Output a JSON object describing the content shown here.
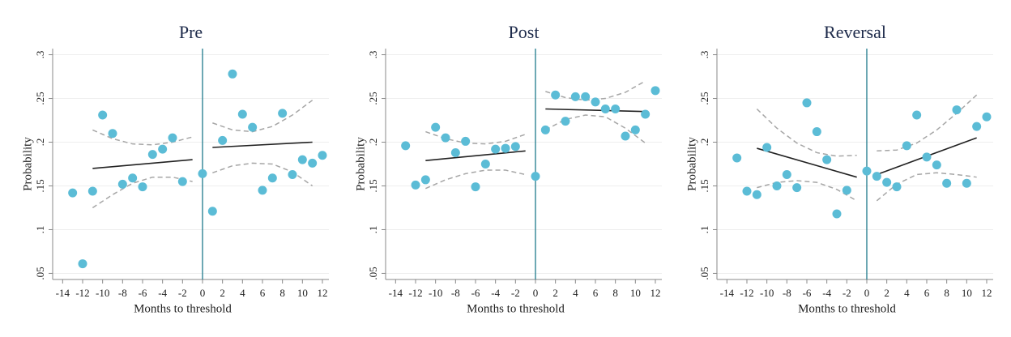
{
  "chart_data": [
    {
      "type": "scatter",
      "title": "Pre",
      "x_label": "Months to threshold",
      "y_label": "Probability",
      "x": [
        -13,
        -12,
        -11,
        -10,
        -9,
        -8,
        -7,
        -6,
        -5,
        -4,
        -3,
        -2,
        0,
        1,
        2,
        3,
        4,
        5,
        6,
        7,
        8,
        9,
        10,
        11,
        12
      ],
      "values": [
        0.142,
        0.061,
        0.144,
        0.231,
        0.21,
        0.152,
        0.159,
        0.149,
        0.186,
        0.192,
        0.205,
        0.155,
        0.164,
        0.121,
        0.202,
        0.278,
        0.232,
        0.217,
        0.145,
        0.159,
        0.233,
        0.163,
        0.18,
        0.176,
        0.185
      ],
      "color": "#5bbcd6",
      "vline": 0,
      "vline_color": "#1f7a8c",
      "fit_color": "#222222",
      "band_color": "#a6a6a6",
      "fits": [
        {
          "x": [
            -11,
            -1
          ],
          "values": [
            0.17,
            0.18
          ]
        },
        {
          "x": [
            1,
            11
          ],
          "values": [
            0.194,
            0.2
          ]
        }
      ],
      "bands": [
        {
          "x": [
            -11,
            -9,
            -7,
            -5,
            -3,
            -1
          ],
          "upper": [
            0.214,
            0.204,
            0.198,
            0.197,
            0.2,
            0.206
          ],
          "lower": [
            0.125,
            0.14,
            0.153,
            0.16,
            0.16,
            0.155
          ]
        },
        {
          "x": [
            1,
            3,
            5,
            7,
            9,
            11
          ],
          "upper": [
            0.222,
            0.214,
            0.212,
            0.218,
            0.231,
            0.248
          ],
          "lower": [
            0.165,
            0.173,
            0.176,
            0.175,
            0.166,
            0.15
          ]
        }
      ],
      "xlim": [
        -15,
        12.65
      ],
      "ylim": [
        0.043,
        0.307
      ],
      "xticks": [
        -14,
        -12,
        -10,
        -8,
        -6,
        -4,
        -2,
        0,
        2,
        4,
        6,
        8,
        10,
        12
      ],
      "yticks": [
        {
          "value": 0.05,
          "label": ".05"
        },
        {
          "value": 0.1,
          "label": ".1"
        },
        {
          "value": 0.15,
          "label": ".15"
        },
        {
          "value": 0.2,
          "label": ".2"
        },
        {
          "value": 0.25,
          "label": ".25"
        },
        {
          "value": 0.3,
          "label": ".3"
        }
      ],
      "grid": true
    },
    {
      "type": "scatter",
      "title": "Post",
      "x_label": "Months to threshold",
      "y_label": "Probability",
      "x": [
        -13,
        -12,
        -11,
        -10,
        -9,
        -8,
        -7,
        -6,
        -5,
        -4,
        -3,
        -2,
        0,
        1,
        2,
        3,
        4,
        5,
        6,
        7,
        8,
        9,
        10,
        11,
        12
      ],
      "values": [
        0.196,
        0.151,
        0.157,
        0.217,
        0.205,
        0.188,
        0.201,
        0.149,
        0.175,
        0.192,
        0.193,
        0.195,
        0.161,
        0.214,
        0.254,
        0.224,
        0.252,
        0.252,
        0.246,
        0.238,
        0.238,
        0.207,
        0.214,
        0.232,
        0.259
      ],
      "color": "#5bbcd6",
      "vline": 0,
      "vline_color": "#1f7a8c",
      "fit_color": "#222222",
      "band_color": "#a6a6a6",
      "fits": [
        {
          "x": [
            -11,
            -1
          ],
          "values": [
            0.179,
            0.19
          ]
        },
        {
          "x": [
            1,
            11
          ],
          "values": [
            0.238,
            0.235
          ]
        }
      ],
      "bands": [
        {
          "x": [
            -11,
            -9,
            -7,
            -5,
            -3,
            -1
          ],
          "upper": [
            0.212,
            0.204,
            0.199,
            0.198,
            0.201,
            0.209
          ],
          "lower": [
            0.147,
            0.157,
            0.164,
            0.168,
            0.168,
            0.163
          ]
        },
        {
          "x": [
            1,
            3,
            5,
            7,
            9,
            11
          ],
          "upper": [
            0.258,
            0.251,
            0.248,
            0.25,
            0.257,
            0.27
          ],
          "lower": [
            0.214,
            0.226,
            0.231,
            0.229,
            0.216,
            0.199
          ]
        }
      ],
      "xlim": [
        -15,
        12.65
      ],
      "ylim": [
        0.043,
        0.307
      ],
      "xticks": [
        -14,
        -12,
        -10,
        -8,
        -6,
        -4,
        -2,
        0,
        2,
        4,
        6,
        8,
        10,
        12
      ],
      "yticks": [
        {
          "value": 0.05,
          "label": ".05"
        },
        {
          "value": 0.1,
          "label": ".1"
        },
        {
          "value": 0.15,
          "label": ".15"
        },
        {
          "value": 0.2,
          "label": ".2"
        },
        {
          "value": 0.25,
          "label": ".25"
        },
        {
          "value": 0.3,
          "label": ".3"
        }
      ],
      "grid": true
    },
    {
      "type": "scatter",
      "title": "Reversal",
      "x_label": "Months to threshold",
      "y_label": "Probability",
      "x": [
        -13,
        -12,
        -11,
        -10,
        -9,
        -8,
        -7,
        -6,
        -5,
        -4,
        -3,
        -2,
        0,
        1,
        2,
        3,
        4,
        5,
        6,
        7,
        8,
        9,
        10,
        11,
        12
      ],
      "values": [
        0.182,
        0.144,
        0.14,
        0.194,
        0.15,
        0.163,
        0.148,
        0.245,
        0.212,
        0.18,
        0.118,
        0.145,
        0.167,
        0.161,
        0.154,
        0.149,
        0.196,
        0.231,
        0.183,
        0.174,
        0.153,
        0.237,
        0.153,
        0.218,
        0.229
      ],
      "color": "#5bbcd6",
      "vline": 0,
      "vline_color": "#1f7a8c",
      "fit_color": "#222222",
      "band_color": "#a6a6a6",
      "fits": [
        {
          "x": [
            -11,
            -1
          ],
          "values": [
            0.193,
            0.16
          ]
        },
        {
          "x": [
            1,
            11
          ],
          "values": [
            0.163,
            0.205
          ]
        }
      ],
      "bands": [
        {
          "x": [
            -11,
            -9,
            -7,
            -5,
            -3,
            -1
          ],
          "upper": [
            0.238,
            0.216,
            0.199,
            0.188,
            0.184,
            0.185
          ],
          "lower": [
            0.148,
            0.154,
            0.156,
            0.154,
            0.146,
            0.133
          ]
        },
        {
          "x": [
            1,
            3,
            5,
            7,
            9,
            11
          ],
          "upper": [
            0.19,
            0.191,
            0.199,
            0.214,
            0.233,
            0.254
          ],
          "lower": [
            0.133,
            0.152,
            0.163,
            0.165,
            0.163,
            0.16
          ]
        }
      ],
      "xlim": [
        -15,
        12.65
      ],
      "ylim": [
        0.043,
        0.307
      ],
      "xticks": [
        -14,
        -12,
        -10,
        -8,
        -6,
        -4,
        -2,
        0,
        2,
        4,
        6,
        8,
        10,
        12
      ],
      "yticks": [
        {
          "value": 0.05,
          "label": ".05"
        },
        {
          "value": 0.1,
          "label": ".1"
        },
        {
          "value": 0.15,
          "label": ".15"
        },
        {
          "value": 0.2,
          "label": ".2"
        },
        {
          "value": 0.25,
          "label": ".25"
        },
        {
          "value": 0.3,
          "label": ".3"
        }
      ],
      "grid": true
    }
  ]
}
